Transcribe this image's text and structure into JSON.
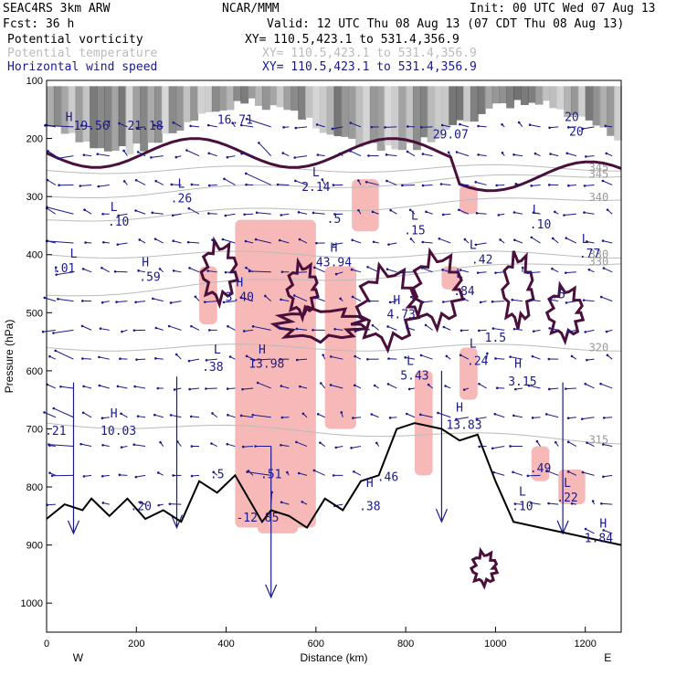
{
  "header": {
    "model": "SEAC4RS  3km ARW",
    "org": "NCAR/MMM",
    "init": "Init: 00 UTC Wed 07 Aug 13",
    "fcst": "Fcst:   36 h",
    "valid": "Valid: 12 UTC Thu 08 Aug 13 (07 CDT Thu 08 Aug 13)",
    "fields": [
      {
        "name": "Potential vorticity",
        "xy": "XY= 110.5,423.1 to 531.4,356.9",
        "color": "#000000"
      },
      {
        "name": "Potential temperature",
        "xy": "XY= 110.5,423.1 to 531.4,356.9",
        "color": "#bbbbbb"
      },
      {
        "name": "Horizontal wind speed",
        "xy": "XY= 110.5,423.1 to 531.4,356.9",
        "color": "#1a1a8c"
      }
    ]
  },
  "colors": {
    "wind": "#1a1a8c",
    "pv_contour": "#4a0f3a",
    "theta": "#bbbbbb",
    "shading": "#f7b8b8",
    "terrain": "#000000"
  },
  "chart_data": {
    "type": "cross-section",
    "xlabel": "Distance (km)",
    "ylabel": "Pressure (hPa)",
    "xlim": [
      0,
      1280
    ],
    "ylim": [
      100,
      1050
    ],
    "y_inverted": true,
    "x_ticks": [
      0,
      200,
      400,
      600,
      800,
      1000,
      1200
    ],
    "x_tick_labels": [
      "0",
      "200",
      "400",
      "600",
      "800",
      "1000",
      "1200"
    ],
    "y_ticks": [
      100,
      200,
      300,
      400,
      500,
      600,
      700,
      800,
      900,
      1000
    ],
    "y_tick_labels": [
      "100",
      "200",
      "300",
      "400",
      "500",
      "600",
      "700",
      "800",
      "900",
      "1000"
    ],
    "endpoint_labels": {
      "left": "W",
      "right": "E"
    },
    "terrain": [
      {
        "x": 0,
        "p": 855
      },
      {
        "x": 40,
        "p": 830
      },
      {
        "x": 80,
        "p": 840
      },
      {
        "x": 100,
        "p": 820
      },
      {
        "x": 140,
        "p": 850
      },
      {
        "x": 180,
        "p": 820
      },
      {
        "x": 220,
        "p": 855
      },
      {
        "x": 260,
        "p": 840
      },
      {
        "x": 300,
        "p": 860
      },
      {
        "x": 340,
        "p": 790
      },
      {
        "x": 380,
        "p": 810
      },
      {
        "x": 420,
        "p": 780
      },
      {
        "x": 450,
        "p": 820
      },
      {
        "x": 480,
        "p": 860
      },
      {
        "x": 500,
        "p": 840
      },
      {
        "x": 540,
        "p": 850
      },
      {
        "x": 580,
        "p": 870
      },
      {
        "x": 620,
        "p": 820
      },
      {
        "x": 660,
        "p": 840
      },
      {
        "x": 700,
        "p": 790
      },
      {
        "x": 740,
        "p": 780
      },
      {
        "x": 780,
        "p": 700
      },
      {
        "x": 820,
        "p": 690
      },
      {
        "x": 880,
        "p": 700
      },
      {
        "x": 920,
        "p": 720
      },
      {
        "x": 960,
        "p": 710
      },
      {
        "x": 1000,
        "p": 790
      },
      {
        "x": 1040,
        "p": 860
      },
      {
        "x": 1100,
        "p": 870
      },
      {
        "x": 1160,
        "p": 880
      },
      {
        "x": 1220,
        "p": 890
      },
      {
        "x": 1280,
        "p": 900
      }
    ],
    "theta_contours": [
      {
        "p_left": 690,
        "p_right": 720,
        "label": "315"
      },
      {
        "p_left": 560,
        "p_right": 560,
        "label": "320"
      },
      {
        "p_left": 470,
        "p_right": 410,
        "label": "330"
      },
      {
        "p_left": 400,
        "p_right": 400,
        "label": "330"
      },
      {
        "p_left": 340,
        "p_right": 300,
        "label": "340"
      },
      {
        "p_left": 300,
        "p_right": 260,
        "label": "345"
      },
      {
        "p_left": 255,
        "p_right": 250,
        "label": "345"
      }
    ],
    "annotations": [
      {
        "x": 60,
        "p": 405,
        "text": "L"
      },
      {
        "x": 40,
        "p": 430,
        "text": ".01"
      },
      {
        "x": 150,
        "p": 325,
        "text": "L"
      },
      {
        "x": 160,
        "p": 350,
        "text": ".10"
      },
      {
        "x": 220,
        "p": 420,
        "text": "H"
      },
      {
        "x": 230,
        "p": 445,
        "text": ".59"
      },
      {
        "x": 300,
        "p": 285,
        "text": "L"
      },
      {
        "x": 300,
        "p": 310,
        "text": ".26"
      },
      {
        "x": 380,
        "p": 570,
        "text": "L"
      },
      {
        "x": 370,
        "p": 600,
        "text": ".38"
      },
      {
        "x": 150,
        "p": 680,
        "text": "H"
      },
      {
        "x": 160,
        "p": 710,
        "text": "10.03"
      },
      {
        "x": 20,
        "p": 710,
        "text": ".21"
      },
      {
        "x": 430,
        "p": 455,
        "text": "H"
      },
      {
        "x": 430,
        "p": 480,
        "text": "3.40"
      },
      {
        "x": 480,
        "p": 570,
        "text": "H"
      },
      {
        "x": 490,
        "p": 595,
        "text": "13.98"
      },
      {
        "x": 600,
        "p": 265,
        "text": "L"
      },
      {
        "x": 600,
        "p": 290,
        "text": "2.14"
      },
      {
        "x": 640,
        "p": 345,
        "text": ".5"
      },
      {
        "x": 640,
        "p": 395,
        "text": "H"
      },
      {
        "x": 640,
        "p": 420,
        "text": "43.94"
      },
      {
        "x": 780,
        "p": 485,
        "text": "H"
      },
      {
        "x": 790,
        "p": 510,
        "text": "4.73"
      },
      {
        "x": 820,
        "p": 340,
        "text": "L"
      },
      {
        "x": 820,
        "p": 365,
        "text": ".15"
      },
      {
        "x": 810,
        "p": 590,
        "text": "L"
      },
      {
        "x": 820,
        "p": 615,
        "text": "5.43"
      },
      {
        "x": 920,
        "p": 440,
        "text": "L"
      },
      {
        "x": 930,
        "p": 470,
        "text": ".84"
      },
      {
        "x": 950,
        "p": 390,
        "text": "L"
      },
      {
        "x": 970,
        "p": 415,
        "text": ".42"
      },
      {
        "x": 950,
        "p": 560,
        "text": "L"
      },
      {
        "x": 960,
        "p": 590,
        "text": ".24"
      },
      {
        "x": 920,
        "p": 670,
        "text": "H"
      },
      {
        "x": 930,
        "p": 700,
        "text": "13.83"
      },
      {
        "x": 1000,
        "p": 550,
        "text": "1.5"
      },
      {
        "x": 1050,
        "p": 595,
        "text": "H"
      },
      {
        "x": 1060,
        "p": 625,
        "text": "3.15"
      },
      {
        "x": 1090,
        "p": 330,
        "text": "L"
      },
      {
        "x": 1100,
        "p": 355,
        "text": ".10"
      },
      {
        "x": 1200,
        "p": 380,
        "text": "L"
      },
      {
        "x": 1210,
        "p": 405,
        "text": ".77"
      },
      {
        "x": 1140,
        "p": 475,
        "text": ".5"
      },
      {
        "x": 1060,
        "p": 815,
        "text": "L"
      },
      {
        "x": 1060,
        "p": 840,
        "text": ".10"
      },
      {
        "x": 1160,
        "p": 800,
        "text": "L"
      },
      {
        "x": 1160,
        "p": 825,
        "text": ".22"
      },
      {
        "x": 1100,
        "p": 775,
        "text": ".49"
      },
      {
        "x": 1240,
        "p": 870,
        "text": "H"
      },
      {
        "x": 1230,
        "p": 895,
        "text": "1.84"
      },
      {
        "x": 470,
        "p": 860,
        "text": "-12.85"
      },
      {
        "x": 500,
        "p": 785,
        "text": ".51"
      },
      {
        "x": 720,
        "p": 800,
        "text": "H"
      },
      {
        "x": 720,
        "p": 840,
        "text": ".38"
      },
      {
        "x": 760,
        "p": 790,
        "text": ".46"
      },
      {
        "x": 210,
        "p": 840,
        "text": ".20"
      },
      {
        "x": 380,
        "p": 785,
        "text": ".5"
      },
      {
        "x": 50,
        "p": 170,
        "text": "H"
      },
      {
        "x": 100,
        "p": 185,
        "text": "19.56"
      },
      {
        "x": 220,
        "p": 185,
        "text": "21.18"
      },
      {
        "x": 420,
        "p": 175,
        "text": "16.71"
      },
      {
        "x": 900,
        "p": 200,
        "text": "29.07"
      },
      {
        "x": 1170,
        "p": 170,
        "text": "20"
      },
      {
        "x": 1180,
        "p": 195,
        "text": "20"
      }
    ]
  }
}
